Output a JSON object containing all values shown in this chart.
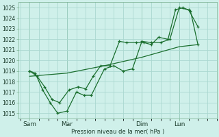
{
  "bg_color": "#cff0ea",
  "grid_color": "#aad8d0",
  "line_color": "#1a6e2e",
  "ylabel": "Pression niveau de la mer( hPa )",
  "ylim": [
    1014.5,
    1025.5
  ],
  "yticks": [
    1015,
    1016,
    1017,
    1018,
    1019,
    1020,
    1021,
    1022,
    1023,
    1024,
    1025
  ],
  "xtick_labels": [
    "Sam",
    "Mar",
    "Dim",
    "Lun"
  ],
  "xtick_positions": [
    0.5,
    2.5,
    6.5,
    8.5
  ],
  "vline_positions": [
    0.5,
    2.5,
    6.5,
    8.5
  ],
  "xlim": [
    -0.1,
    10.5
  ],
  "series1_x": [
    0.5,
    0.8,
    1.2,
    1.6,
    2.0,
    2.5,
    3.0,
    3.4,
    3.8,
    4.5,
    5.0,
    5.5,
    6.0,
    6.5,
    7.0,
    7.5,
    8.0,
    8.5,
    9.0,
    9.5
  ],
  "series1_y": [
    1019.0,
    1018.8,
    1017.2,
    1016.0,
    1015.0,
    1015.2,
    1017.0,
    1016.7,
    1016.7,
    1019.2,
    1019.5,
    1019.0,
    1019.2,
    1021.8,
    1021.7,
    1021.7,
    1022.0,
    1025.0,
    1024.8,
    1023.2
  ],
  "series2_x": [
    0.5,
    0.9,
    1.3,
    1.7,
    2.1,
    2.6,
    3.1,
    3.5,
    3.9,
    4.3,
    4.8,
    5.3,
    5.7,
    6.2,
    6.6,
    7.0,
    7.4,
    7.9,
    8.3,
    8.7,
    9.1,
    9.5
  ],
  "series2_y": [
    1019.0,
    1018.5,
    1017.5,
    1016.3,
    1016.0,
    1017.2,
    1017.5,
    1017.3,
    1018.5,
    1019.5,
    1019.5,
    1021.8,
    1021.7,
    1021.7,
    1021.7,
    1021.5,
    1022.2,
    1022.0,
    1024.8,
    1025.0,
    1024.7,
    1021.5
  ],
  "series3_x": [
    0.5,
    2.5,
    4.5,
    6.5,
    8.5,
    9.5
  ],
  "series3_y": [
    1018.5,
    1018.8,
    1019.5,
    1020.3,
    1021.3,
    1021.5
  ]
}
